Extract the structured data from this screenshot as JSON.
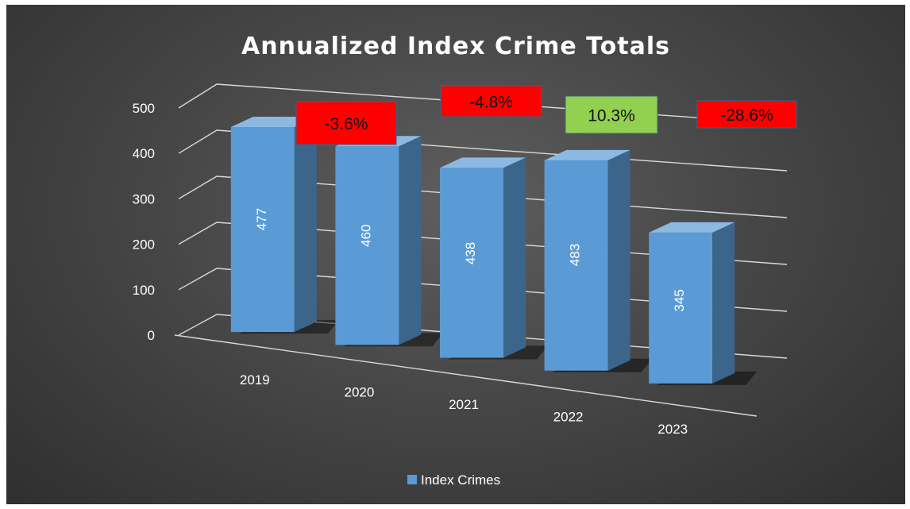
{
  "chart_data": {
    "type": "bar",
    "title": "Annualized Index Crime Totals",
    "categories": [
      "2019",
      "2020",
      "2021",
      "2022",
      "2023"
    ],
    "series": [
      {
        "name": "Index Crimes",
        "values": [
          477,
          460,
          438,
          483,
          345
        ],
        "color": "#5b9bd5"
      }
    ],
    "data_labels": [
      "477",
      "460",
      "438",
      "483",
      "345"
    ],
    "ylim": [
      0,
      500
    ],
    "yticks": [
      0,
      100,
      200,
      300,
      400,
      500
    ],
    "ytick_labels": [
      "0",
      "100",
      "200",
      "300",
      "400",
      "500"
    ],
    "xlabel": "",
    "ylabel": "",
    "grid": true,
    "style": "3d-column",
    "legend_position": "bottom",
    "annotations": [
      {
        "category": "2020",
        "text": "-3.6%",
        "color": "#ff0000"
      },
      {
        "category": "2021",
        "text": "-4.8%",
        "color": "#ff0000"
      },
      {
        "category": "2022",
        "text": "10.3%",
        "color": "#92d050"
      },
      {
        "category": "2023",
        "text": "-28.6%",
        "color": "#ff0000"
      }
    ]
  }
}
